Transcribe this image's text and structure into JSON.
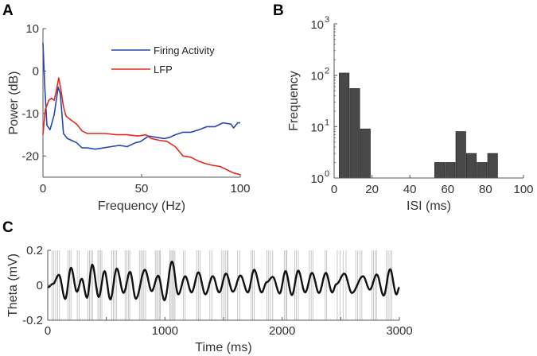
{
  "chart_data": [
    {
      "panel": "A",
      "type": "line",
      "xlabel": "Frequency (Hz)",
      "ylabel": "Power (dB)",
      "xlim": [
        0,
        100
      ],
      "ylim": [
        -25,
        10
      ],
      "xticks": [
        0,
        50,
        100
      ],
      "yticks": [
        10,
        0,
        -10,
        -20
      ],
      "legend_position": "top-right",
      "series": [
        {
          "name": "Firing Activity",
          "color": "#2447b0",
          "x": [
            0,
            0.9,
            2,
            3.6,
            5.7,
            7.7,
            8.8,
            10.4,
            12.4,
            14.4,
            17.1,
            19.8,
            22.5,
            26.5,
            30.6,
            34.6,
            38.7,
            42.7,
            46.8,
            49.5,
            53.5,
            57.5,
            61.6,
            64.3,
            67,
            71,
            75.1,
            79.1,
            83.2,
            87.2,
            91.2,
            95.3,
            96.6,
            98.7,
            100
          ],
          "y": [
            6.6,
            -3.4,
            -12.8,
            -13.8,
            -10.3,
            -3.8,
            -5.3,
            -14.7,
            -15.9,
            -16.3,
            -16.9,
            -18.1,
            -18.1,
            -18.4,
            -18.1,
            -17.8,
            -17.5,
            -17.8,
            -16.9,
            -16.6,
            -15.3,
            -15.6,
            -15.9,
            -15.6,
            -15,
            -14.4,
            -14.4,
            -13.8,
            -13.1,
            -13.1,
            -12.2,
            -12.5,
            -13.4,
            -12.2,
            -12.2
          ]
        },
        {
          "name": "LFP",
          "color": "#e8281c",
          "x": [
            0,
            1.2,
            3,
            4.3,
            5.7,
            7,
            8,
            9,
            10.4,
            11.7,
            14.4,
            17.1,
            19.8,
            22.5,
            26.5,
            31.9,
            37.3,
            42.7,
            48.1,
            52.2,
            54.9,
            58.9,
            62.9,
            67,
            71,
            75.1,
            79.1,
            83.2,
            85.8,
            89.9,
            93.9,
            96.6,
            100
          ],
          "y": [
            -15,
            -9,
            -6.9,
            -6.4,
            -6.9,
            -4.1,
            -1.6,
            -4.1,
            -8.4,
            -10.6,
            -11.6,
            -12.5,
            -14.1,
            -14.7,
            -14.7,
            -14.7,
            -15,
            -15,
            -15.3,
            -15,
            -15.9,
            -16.3,
            -16.6,
            -17.8,
            -20,
            -20.3,
            -21.3,
            -21.9,
            -22.2,
            -22.5,
            -23.4,
            -24,
            -24.4
          ]
        }
      ]
    },
    {
      "panel": "B",
      "type": "bar",
      "xlabel": "ISI (ms)",
      "ylabel": "Frequency",
      "xlim": [
        0,
        100
      ],
      "yscale": "log",
      "ylim": [
        1,
        1000
      ],
      "xticks": [
        0,
        20,
        40,
        60,
        80,
        100
      ],
      "yticks": [
        {
          "base": "10",
          "exp": "0"
        },
        {
          "base": "10",
          "exp": "1"
        },
        {
          "base": "10",
          "exp": "2"
        },
        {
          "base": "10",
          "exp": "3"
        }
      ],
      "bar_color": "#484848",
      "bin_width": 5.6,
      "bin_centers": [
        5.3,
        10.9,
        16.5,
        55.7,
        61.3,
        66.9,
        72.5,
        78.1,
        83.7
      ],
      "values": [
        110,
        55,
        9,
        2,
        2,
        8,
        3,
        2,
        3
      ]
    },
    {
      "panel": "C",
      "type": "line",
      "xlabel": "Time (ms)",
      "ylabel": "Theta (mV)",
      "xlim": [
        0,
        3000
      ],
      "ylim": [
        -0.2,
        0.2
      ],
      "xticks": [
        0,
        1000,
        2000,
        3000
      ],
      "yticks": [
        "0.2",
        "0",
        "-0.2"
      ],
      "ytick_values": [
        0.2,
        0,
        -0.2
      ],
      "line_color": "#111111",
      "spike_color": "#b8b8b8",
      "theta_extrema": {
        "t": [
          0,
          45,
          95,
          149,
          199,
          249,
          290,
          335,
          380,
          435,
          485,
          534,
          589,
          647,
          702,
          752,
          829,
          887,
          942,
          996,
          1060,
          1114,
          1173,
          1227,
          1286,
          1345,
          1408,
          1463,
          1521,
          1580,
          1644,
          1707,
          1761,
          1825,
          1868,
          1920,
          1979,
          2029,
          2083,
          2137,
          2196,
          2255,
          2314,
          2373,
          2427,
          2463,
          2531,
          2595,
          2690,
          2748,
          2807,
          2866,
          2921,
          2975,
          3000
        ],
        "v": [
          -0.012,
          0.008,
          0.06,
          -0.078,
          0.1,
          -0.037,
          0.037,
          -0.071,
          0.118,
          -0.067,
          0.081,
          -0.081,
          0.096,
          -0.044,
          0.077,
          -0.077,
          0.089,
          -0.033,
          0.055,
          -0.086,
          0.136,
          -0.052,
          0.052,
          -0.041,
          0.074,
          -0.052,
          0.052,
          -0.041,
          0.067,
          -0.037,
          0.056,
          -0.041,
          0.089,
          -0.041,
          0.018,
          0.048,
          -0.047,
          0.081,
          -0.056,
          0.084,
          -0.041,
          0.071,
          -0.044,
          0.071,
          -0.041,
          0.007,
          0.067,
          -0.044,
          0.052,
          -0.025,
          0.062,
          -0.059,
          0.092,
          -0.052,
          -0.012
        ]
      },
      "spike_times": [
        36,
        52,
        68,
        85,
        100,
        172,
        185,
        198,
        252,
        268,
        342,
        356,
        370,
        383,
        428,
        440,
        452,
        462,
        545,
        560,
        575,
        588,
        660,
        675,
        690,
        700,
        783,
        795,
        808,
        820,
        835,
        918,
        930,
        942,
        955,
        960,
        1042,
        1052,
        1063,
        1075,
        1085,
        1158,
        1172,
        1270,
        1285,
        1300,
        1383,
        1400,
        1485,
        1500,
        1515,
        1530,
        1538,
        1620,
        1638,
        1735,
        1748,
        1762,
        1870,
        1885,
        1900,
        1920,
        2018,
        2032,
        2040,
        2108,
        2122,
        2138,
        2232,
        2248,
        2262,
        2367,
        2380,
        2470,
        2495,
        2520,
        2545,
        2628,
        2645,
        2665,
        2680,
        2765,
        2780,
        2795,
        2805,
        2890,
        2905,
        2920,
        2935
      ]
    }
  ]
}
